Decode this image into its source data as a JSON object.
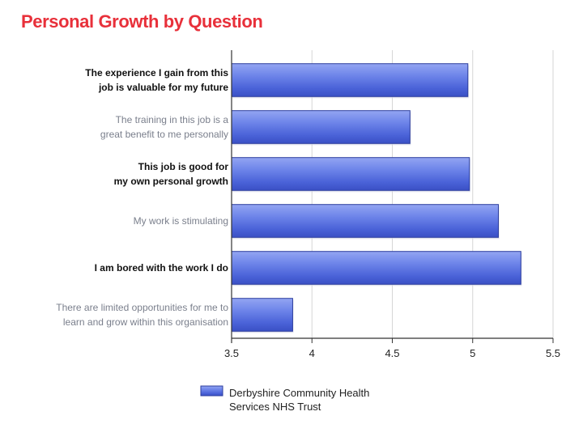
{
  "title": "Personal Growth by Question",
  "chart_data": {
    "type": "bar",
    "orientation": "horizontal",
    "title": "Personal Growth by Question",
    "categories": [
      [
        "The experience I gain from this",
        "job is valuable for my future"
      ],
      [
        "The training in this job is a",
        "great benefit to me personally"
      ],
      [
        "This job is good for",
        "my own personal growth"
      ],
      [
        "My work is stimulating"
      ],
      [
        "I am bored with the work I do"
      ],
      [
        "There are limited opportunities for me to",
        "learn and grow within this organisation"
      ]
    ],
    "category_styles": [
      "bold",
      "muted",
      "bold",
      "muted",
      "bold",
      "muted"
    ],
    "series": [
      {
        "name": "Derbyshire Community Health Services NHS Trust",
        "legend_lines": [
          "Derbyshire Community Health",
          "Services NHS Trust"
        ],
        "values": [
          4.97,
          4.61,
          4.98,
          5.16,
          5.3,
          3.88
        ],
        "color": "#5b73e0"
      }
    ],
    "xlim": [
      3.5,
      5.5
    ],
    "xticks": [
      "3.5",
      "4",
      "4.5",
      "5",
      "5.5"
    ],
    "xlabel": "",
    "ylabel": "",
    "grid": "vertical",
    "legend": "bottom"
  }
}
